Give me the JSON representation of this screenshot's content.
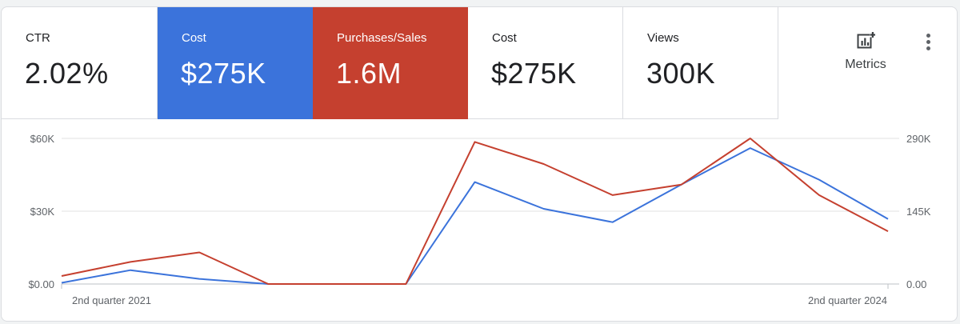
{
  "tiles": [
    {
      "label": "CTR",
      "value": "2.02%",
      "selected": false,
      "color": null
    },
    {
      "label": "Cost",
      "value": "$275K",
      "selected": true,
      "color": "#3b73db"
    },
    {
      "label": "Purchases/Sales",
      "value": "1.6M",
      "selected": true,
      "color": "#c5402f"
    },
    {
      "label": "Cost",
      "value": "$275K",
      "selected": false,
      "color": null
    },
    {
      "label": "Views",
      "value": "300K",
      "selected": false,
      "color": null
    }
  ],
  "toolbar": {
    "metrics_label": "Metrics",
    "metrics_icon": "add-chart-icon",
    "more_icon": "more-vert-icon"
  },
  "chart_data": {
    "type": "line",
    "x_first_label": "2nd quarter 2021",
    "x_last_label": "2nd quarter 2024",
    "y_left": {
      "ticks": [
        "$0.00",
        "$30K",
        "$60K"
      ],
      "min": 0,
      "max": 60000
    },
    "y_right": {
      "ticks": [
        "0.00",
        "145K",
        "290K"
      ],
      "min": 0,
      "max": 290000
    },
    "gridlines": true,
    "series": [
      {
        "name": "Cost",
        "axis": "left",
        "color": "#3b73db",
        "values": [
          500,
          5700,
          2100,
          0,
          0,
          0,
          42000,
          31000,
          25500,
          41000,
          56000,
          43000,
          26800
        ]
      },
      {
        "name": "Purchases/Sales",
        "axis": "right",
        "color": "#c5402f",
        "values": [
          16000,
          44000,
          63000,
          0,
          0,
          0,
          283000,
          239000,
          177000,
          198000,
          290000,
          177000,
          105000
        ]
      }
    ]
  }
}
